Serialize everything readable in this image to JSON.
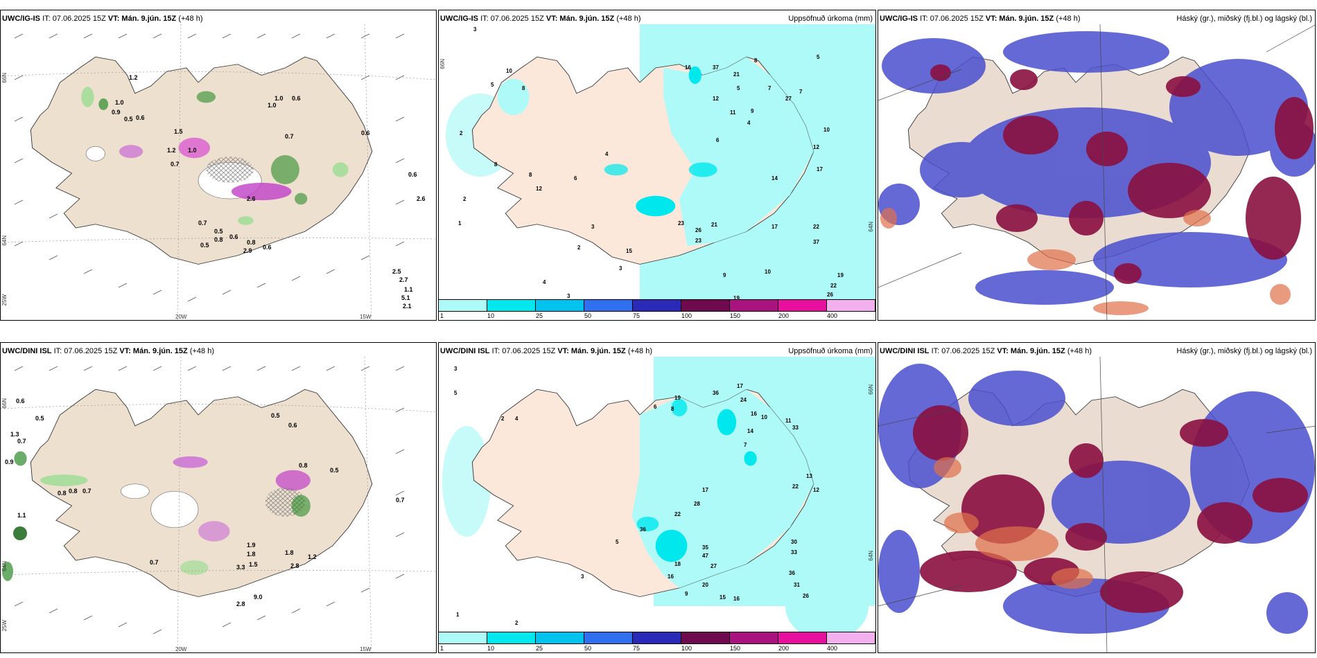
{
  "rows": [
    {
      "model": "UWC/IG-IS",
      "it_label": "IT: 07.06.2025 15Z",
      "vt_label": "VT: Mán. 9.jún. 15Z",
      "lead": "(+48 h)"
    },
    {
      "model": "UWC/DINI ISL",
      "it_label": "IT: 07.06.2025 15Z",
      "vt_label": "VT: Mán. 9.jún. 15Z",
      "lead": "(+48 h)"
    }
  ],
  "precip_title": "Uppsöfnuð úrkoma (mm)",
  "cloud_title": "Háský (gr.), miðský (fj.bl.) og lágský (bl.)",
  "colorbar": {
    "ticks": [
      "1",
      "10",
      "25",
      "50",
      "75",
      "100",
      "150",
      "200",
      "400"
    ],
    "colors": [
      "#aefaf8",
      "#00e8ee",
      "#00c4ee",
      "#2f6ff0",
      "#2b2ab8",
      "#6e0a4d",
      "#a8137f",
      "#e80f9f",
      "#f3b0ee"
    ]
  },
  "axis_labels": {
    "lat66": "66N",
    "lat64": "64N",
    "lon20": "20W",
    "lon15": "15W",
    "lon25": "25W"
  },
  "top_wind_values": [
    "1.2",
    "1.0",
    "0.9",
    "0.6",
    "0.5",
    "1.2",
    "1.0",
    "1.5",
    "1.0",
    "0.6",
    "0.7",
    "2.6",
    "0.7",
    "0.5",
    "0.8",
    "0.6",
    "0.8",
    "2.9",
    "0.5",
    "0.6",
    "2.5",
    "2.7",
    "1.1",
    "5.1",
    "2.1",
    "0.6",
    "2.6",
    "1.0",
    "0.6",
    "0.7"
  ],
  "bottom_wind_values": [
    "0.6",
    "0.5",
    "1.3",
    "0.7",
    "0.9",
    "0.8",
    "0.8",
    "0.7",
    "1.1",
    "0.7",
    "0.6",
    "0.5",
    "0.8",
    "0.5",
    "0.7",
    "3.3",
    "2.8",
    "9.0",
    "1.9",
    "1.8",
    "1.5",
    "1.8",
    "1.2",
    "2.8"
  ],
  "top_precip_values": [
    "3",
    "2",
    "8",
    "5",
    "8",
    "10",
    "6",
    "4",
    "16",
    "37",
    "21",
    "8",
    "12",
    "11",
    "9",
    "27",
    "5",
    "12",
    "17",
    "10",
    "7",
    "7",
    "5",
    "4",
    "6",
    "3",
    "2",
    "8",
    "12",
    "14",
    "23",
    "26",
    "21",
    "23",
    "17",
    "22",
    "37",
    "19",
    "22",
    "26",
    "19",
    "9",
    "10",
    "15",
    "1",
    "2",
    "4",
    "3",
    "3"
  ],
  "bottom_precip_values": [
    "3",
    "5",
    "2",
    "4",
    "6",
    "8",
    "19",
    "36",
    "17",
    "24",
    "16",
    "14",
    "11",
    "33",
    "22",
    "13",
    "12",
    "10",
    "7",
    "28",
    "22",
    "17",
    "36",
    "35",
    "47",
    "27",
    "30",
    "33",
    "36",
    "31",
    "26",
    "16",
    "20",
    "18",
    "15",
    "16",
    "9",
    "5",
    "2",
    "1",
    "3"
  ]
}
